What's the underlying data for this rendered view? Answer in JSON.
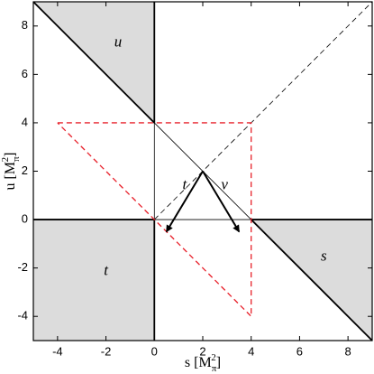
{
  "chart_data": {
    "type": "line",
    "xlabel": [
      "s [M",
      "π",
      "2",
      "]"
    ],
    "ylabel": [
      "u [M",
      "π",
      "2",
      "]"
    ],
    "xlim": [
      -5,
      9
    ],
    "ylim": [
      -5,
      9
    ],
    "xticks": [
      -4,
      -2,
      0,
      2,
      4,
      6,
      8
    ],
    "yticks": [
      -4,
      -2,
      0,
      2,
      4,
      6,
      8
    ],
    "regions": [
      {
        "x": [
          -5,
          0,
          0
        ],
        "y": [
          9,
          9,
          4
        ],
        "color": "#dcdcdc"
      },
      {
        "x": [
          -5,
          0,
          0,
          -5
        ],
        "y": [
          0,
          0,
          -5,
          -5
        ],
        "color": "#dcdcdc"
      },
      {
        "x": [
          4,
          9,
          9
        ],
        "y": [
          0,
          0,
          -5
        ],
        "color": "#dcdcdc"
      }
    ],
    "series": [
      {
        "x": [
          -5,
          0
        ],
        "y": [
          9,
          4
        ],
        "color": "#000000",
        "width": 1.8
      },
      {
        "x": [
          0,
          4
        ],
        "y": [
          4,
          0
        ],
        "color": "#000000",
        "width": 0.8
      },
      {
        "x": [
          4,
          9
        ],
        "y": [
          0,
          -5
        ],
        "color": "#000000",
        "width": 1.8
      },
      {
        "x": [
          0,
          0
        ],
        "y": [
          4,
          9
        ],
        "color": "#000000",
        "width": 1.8
      },
      {
        "x": [
          0,
          0
        ],
        "y": [
          0,
          4
        ],
        "color": "#000000",
        "width": 0.8
      },
      {
        "x": [
          0,
          0
        ],
        "y": [
          -5,
          0
        ],
        "color": "#000000",
        "width": 1.8
      },
      {
        "x": [
          -5,
          0
        ],
        "y": [
          0,
          0
        ],
        "color": "#000000",
        "width": 1.8
      },
      {
        "x": [
          0,
          4
        ],
        "y": [
          0,
          0
        ],
        "color": "#000000",
        "width": 0.8
      },
      {
        "x": [
          4,
          9
        ],
        "y": [
          0,
          0
        ],
        "color": "#000000",
        "width": 1.8
      },
      {
        "x": [
          0,
          9
        ],
        "y": [
          0,
          9
        ],
        "color": "#000000",
        "width": 0.8,
        "dash": true
      },
      {
        "x": [
          -4,
          4,
          4,
          -4
        ],
        "y": [
          4,
          4,
          -4,
          4
        ],
        "color": "#e8202a",
        "width": 1.3,
        "dash": true
      },
      {
        "x": [
          2,
          0.5
        ],
        "y": [
          2,
          -0.5
        ],
        "color": "#000000",
        "width": 2,
        "arrow": true
      },
      {
        "x": [
          2,
          3.5
        ],
        "y": [
          2,
          -0.5
        ],
        "color": "#000000",
        "width": 2,
        "arrow": true
      }
    ],
    "annotations": [
      {
        "text": "u",
        "x": -1.5,
        "y": 7.3
      },
      {
        "text": "t",
        "x": -2,
        "y": -2.15
      },
      {
        "text": "s",
        "x": 7,
        "y": -1.55
      },
      {
        "text": "t",
        "x": 1.25,
        "y": 1.4
      },
      {
        "text": "ν",
        "x": 2.9,
        "y": 1.4
      }
    ]
  }
}
